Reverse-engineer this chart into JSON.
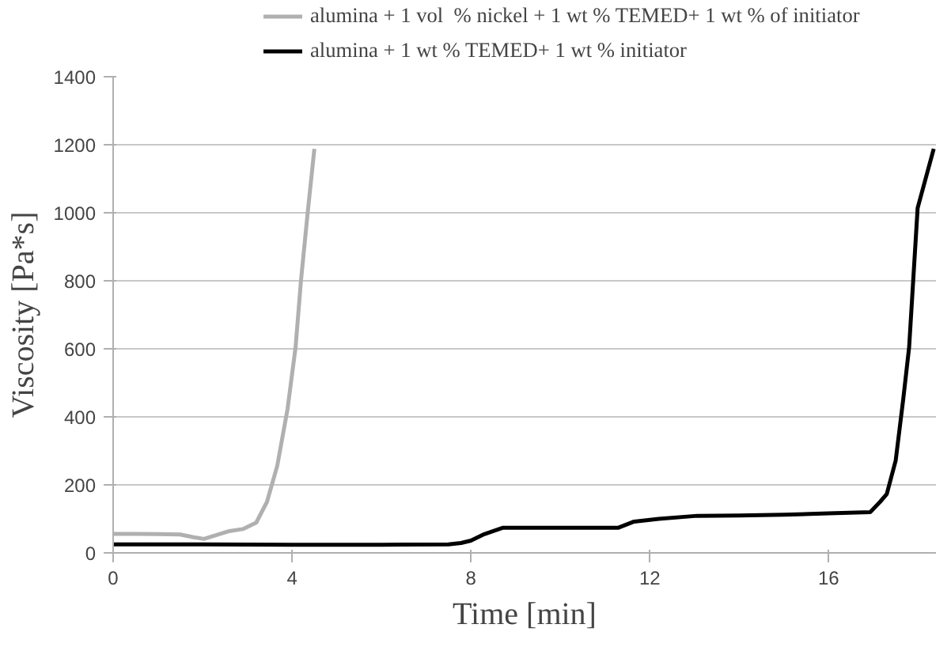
{
  "chart_data": {
    "type": "line",
    "xlabel": "Time [min]",
    "ylabel": "Viscosity [Pa*s]",
    "xlim": [
      0,
      18.4
    ],
    "xticks": [
      0,
      4,
      8,
      12,
      16
    ],
    "ylim": [
      0,
      1400
    ],
    "yticks": [
      0,
      200,
      400,
      600,
      800,
      1000,
      1200,
      1400
    ],
    "grid": "y",
    "legend": "top",
    "marker": "none",
    "line_style": "solid",
    "series": [
      {
        "name": "alumina + 1 vol  % nickel + 1 wt % TEMED+ 1 wt % of initiator",
        "color": "#b0b0b0",
        "x": [
          0,
          0.5,
          1,
          1.5,
          1.8,
          2.03,
          2.3,
          2.6,
          2.9,
          3.2,
          3.44,
          3.67,
          3.9,
          4.08,
          4.2,
          4.35,
          4.5
        ],
        "values": [
          56,
          56,
          55,
          54,
          46,
          41,
          52,
          64,
          70,
          89,
          150,
          256,
          423,
          605,
          800,
          1000,
          1188
        ]
      },
      {
        "name": "alumina + 1 wt % TEMED+ 1 wt % initiator",
        "color": "#000000",
        "x": [
          0,
          2,
          4,
          6,
          7.5,
          7.78,
          8.0,
          8.3,
          8.72,
          10,
          11.3,
          11.65,
          12.2,
          13.06,
          14,
          15,
          16,
          16.93,
          17.15,
          17.3,
          17.5,
          17.67,
          17.8,
          17.99,
          18.35
        ],
        "values": [
          25,
          25,
          24,
          24,
          25,
          29,
          36,
          55,
          74,
          74,
          74,
          92,
          100,
          109,
          110,
          112,
          116,
          120,
          150,
          173,
          272,
          454,
          605,
          1014,
          1188
        ]
      }
    ]
  }
}
